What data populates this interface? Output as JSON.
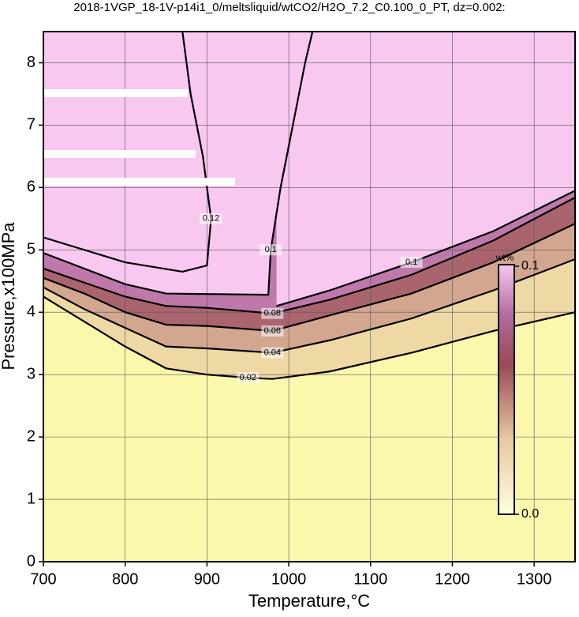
{
  "chart_data": {
    "type": "contour",
    "title": "2018-1VGP_18-1V-p14i1_0/meltsliquid/wtCO2/H2O_7.2_C0.100_0_PT, dz=0.002:",
    "x_label": "Temperature,°C",
    "y_label": "Pressure,x100MPa",
    "xlim": [
      700,
      1350
    ],
    "ylim": [
      0,
      8.5
    ],
    "xticks": [
      700,
      800,
      900,
      1000,
      1100,
      1200,
      1300
    ],
    "yticks": [
      0,
      1,
      2,
      3,
      4,
      5,
      6,
      7,
      8
    ],
    "grid": true,
    "contours": [
      {
        "level": 0.02,
        "x": [
          700,
          750,
          800,
          850,
          900,
          950,
          980,
          1050,
          1150,
          1250,
          1350
        ],
        "y": [
          4.25,
          3.85,
          3.45,
          3.1,
          3.0,
          2.95,
          2.93,
          3.05,
          3.35,
          3.7,
          4.0
        ]
      },
      {
        "level": 0.04,
        "x": [
          700,
          750,
          800,
          850,
          900,
          980,
          1050,
          1150,
          1250,
          1350
        ],
        "y": [
          4.4,
          4.05,
          3.75,
          3.45,
          3.42,
          3.35,
          3.55,
          3.9,
          4.35,
          4.85
        ]
      },
      {
        "level": 0.06,
        "x": [
          700,
          750,
          800,
          850,
          900,
          980,
          1050,
          1150,
          1250,
          1350
        ],
        "y": [
          4.55,
          4.3,
          4.0,
          3.8,
          3.78,
          3.7,
          3.95,
          4.3,
          4.8,
          5.42
        ]
      },
      {
        "level": 0.08,
        "x": [
          700,
          800,
          850,
          900,
          980,
          1050,
          1150,
          1250,
          1350
        ],
        "y": [
          4.7,
          4.25,
          4.1,
          4.07,
          3.98,
          4.2,
          4.6,
          5.15,
          5.84
        ]
      },
      {
        "level": 0.1,
        "x": [
          700,
          800,
          850,
          975,
          978,
          990,
          1005,
          1020,
          1029
        ],
        "y": [
          4.95,
          4.45,
          4.3,
          4.28,
          5.0,
          6.0,
          7.0,
          8.0,
          8.5
        ]
      },
      {
        "level": 0.1,
        "x": [
          985,
          1050,
          1150,
          1250,
          1350
        ],
        "y": [
          4.1,
          4.35,
          4.8,
          5.3,
          5.95
        ]
      },
      {
        "level": 0.12,
        "x": [
          700,
          800,
          870,
          900,
          905,
          895,
          880,
          870
        ],
        "y": [
          5.2,
          4.8,
          4.65,
          4.75,
          5.5,
          6.5,
          7.5,
          8.5
        ]
      }
    ],
    "colorbar": {
      "label": "wt%",
      "clim": [
        0,
        0.1
      ],
      "ticks": [
        {
          "value": 0,
          "label": "0.0"
        },
        0.1
      ]
    }
  }
}
